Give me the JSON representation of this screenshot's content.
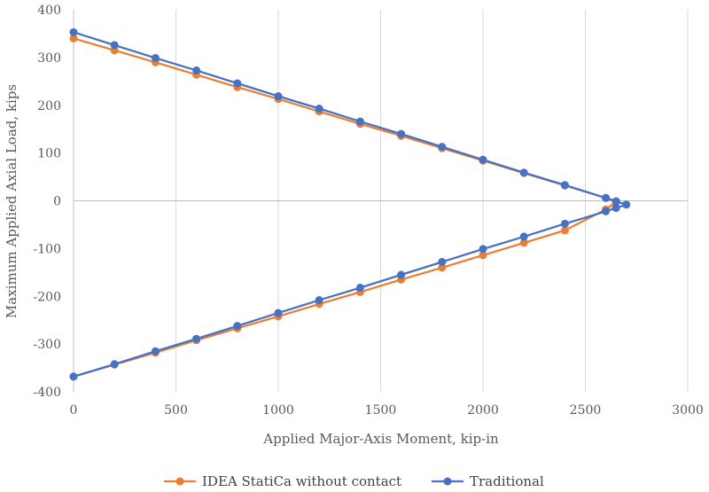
{
  "chart_data": {
    "type": "scatter",
    "title": "",
    "xlabel": "Applied Major-Axis Moment, kip-in",
    "ylabel": "Maximum Applied Axial Load, kips",
    "xlim": [
      0,
      3000
    ],
    "ylim": [
      -400,
      400
    ],
    "xticks": [
      0,
      500,
      1000,
      1500,
      2000,
      2500,
      3000
    ],
    "yticks": [
      -400,
      -300,
      -200,
      -100,
      0,
      100,
      200,
      300,
      400
    ],
    "xtick_labels": [
      "0",
      "500",
      "1000",
      "1500",
      "2000",
      "2500",
      "3000"
    ],
    "ytick_labels": [
      "-400",
      "-300",
      "-200",
      "-100",
      "0",
      "100",
      "200",
      "300",
      "400"
    ],
    "grid": "vertical",
    "legend_position": "bottom",
    "series": [
      {
        "name": "IDEA StatiCa without contact",
        "color": "#ED7D31",
        "points": [
          [
            0,
            340
          ],
          [
            200,
            315
          ],
          [
            400,
            290
          ],
          [
            600,
            264
          ],
          [
            800,
            238
          ],
          [
            1000,
            213
          ],
          [
            1200,
            187
          ],
          [
            1400,
            161
          ],
          [
            1600,
            136
          ],
          [
            1800,
            110
          ],
          [
            2000,
            84
          ],
          [
            2200,
            58
          ],
          [
            2400,
            32
          ],
          [
            2600,
            6
          ],
          [
            2650,
            -3
          ],
          [
            2600,
            -18
          ],
          [
            2400,
            -62
          ],
          [
            2200,
            -88
          ],
          [
            2000,
            -114
          ],
          [
            1800,
            -140
          ],
          [
            1600,
            -165
          ],
          [
            1400,
            -191
          ],
          [
            1200,
            -216
          ],
          [
            1000,
            -242
          ],
          [
            800,
            -267
          ],
          [
            600,
            -292
          ],
          [
            400,
            -318
          ],
          [
            200,
            -343
          ],
          [
            0,
            -368
          ]
        ]
      },
      {
        "name": "Traditional",
        "color": "#4472C4",
        "points": [
          [
            0,
            353
          ],
          [
            200,
            326
          ],
          [
            400,
            299
          ],
          [
            600,
            273
          ],
          [
            800,
            246
          ],
          [
            1000,
            219
          ],
          [
            1200,
            193
          ],
          [
            1400,
            166
          ],
          [
            1600,
            140
          ],
          [
            1800,
            113
          ],
          [
            2000,
            86
          ],
          [
            2200,
            59
          ],
          [
            2400,
            33
          ],
          [
            2600,
            6
          ],
          [
            2650,
            -1
          ],
          [
            2700,
            -8
          ],
          [
            2650,
            -15
          ],
          [
            2600,
            -22
          ],
          [
            2400,
            -48
          ],
          [
            2200,
            -75
          ],
          [
            2000,
            -101
          ],
          [
            1800,
            -128
          ],
          [
            1600,
            -155
          ],
          [
            1400,
            -182
          ],
          [
            1200,
            -208
          ],
          [
            1000,
            -235
          ],
          [
            800,
            -262
          ],
          [
            600,
            -289
          ],
          [
            400,
            -315
          ],
          [
            200,
            -342
          ],
          [
            0,
            -368
          ]
        ]
      }
    ]
  }
}
